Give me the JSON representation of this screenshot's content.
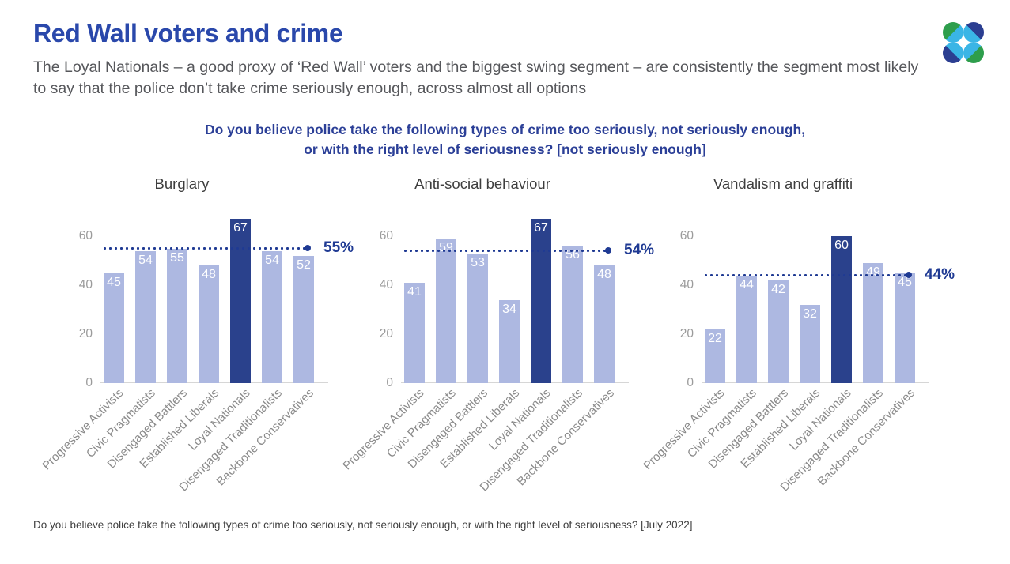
{
  "header": {
    "title": "Red Wall voters and crime",
    "subtitle": "The Loyal Nationals – a good proxy of ‘Red Wall’ voters and the biggest swing segment – are consistently the segment most likely to say that the police don’t take crime seriously enough, across almost all options"
  },
  "logo": {
    "name": "more-in-common-logo",
    "colors": {
      "green": "#2E9E4C",
      "cyan": "#3AB5E6",
      "navy": "#2B3E91"
    }
  },
  "question_title": {
    "line1": "Do you believe police take the following types of crime too seriously, not seriously enough,",
    "line2": "or with the right level of seriousness? [not seriously enough]"
  },
  "chart_data": {
    "type": "bar",
    "categories": [
      "Progressive Activists",
      "Civic Pragmatists",
      "Disengaged Battlers",
      "Established Liberals",
      "Loyal Nationals",
      "Disengaged Traditionalists",
      "Backbone Conservatives"
    ],
    "highlight_category": "Loyal Nationals",
    "y_ticks": [
      0,
      20,
      40,
      60
    ],
    "ylim": [
      0,
      70
    ],
    "grid": "off",
    "colors": {
      "bar": "#ADB8E1",
      "highlight_bar": "#2A418C",
      "reference_line": "#1F3A93"
    },
    "charts": [
      {
        "title": "Burglary",
        "values": [
          45,
          54,
          55,
          48,
          67,
          54,
          52
        ],
        "reference_line": 55,
        "reference_label": "55%"
      },
      {
        "title": "Anti-social behaviour",
        "values": [
          41,
          59,
          53,
          34,
          67,
          56,
          48
        ],
        "reference_line": 54,
        "reference_label": "54%"
      },
      {
        "title": "Vandalism and graffiti",
        "values": [
          22,
          44,
          42,
          32,
          60,
          49,
          45
        ],
        "reference_line": 44,
        "reference_label": "44%"
      }
    ]
  },
  "footnote": {
    "text": "Do you believe police take the following types of crime too seriously, not seriously enough, or with the right level of seriousness? [July 2022]"
  }
}
